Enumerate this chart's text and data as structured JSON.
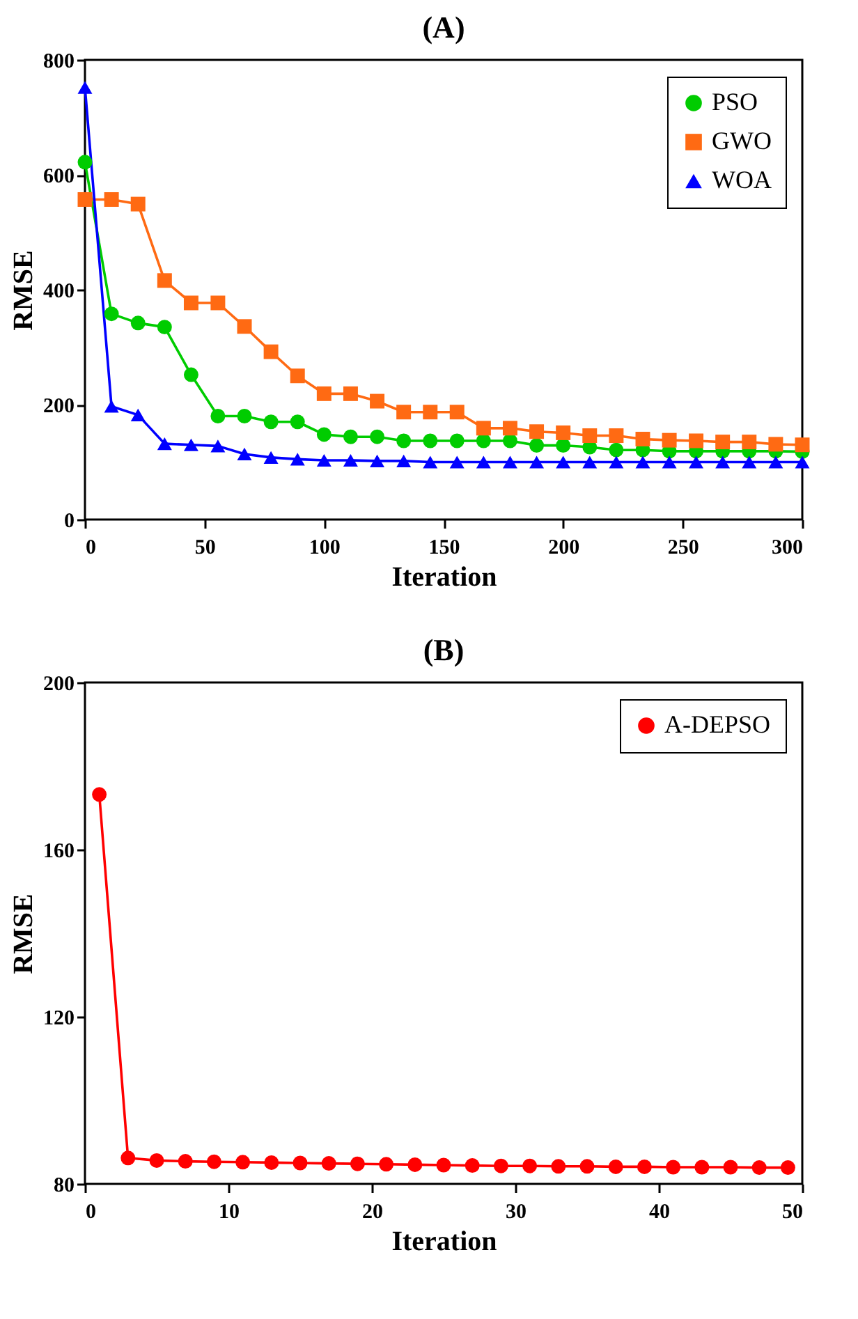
{
  "chart_data": [
    {
      "type": "line",
      "title": "(A)",
      "xlabel": "Iteration",
      "ylabel": "RMSE",
      "xlim": [
        0,
        300
      ],
      "xticks": [
        0,
        50,
        100,
        150,
        200,
        250,
        300
      ],
      "ylim": [
        0,
        800
      ],
      "yticks": [
        0,
        200,
        400,
        600,
        800
      ],
      "grid": false,
      "legend": "top right",
      "x": [
        0,
        11.1,
        22.2,
        33.3,
        44.4,
        55.6,
        66.7,
        77.8,
        88.9,
        100,
        111.1,
        122.2,
        133.3,
        144.4,
        155.6,
        166.7,
        177.8,
        188.9,
        200,
        211.1,
        222.2,
        233.3,
        244.4,
        255.6,
        266.7,
        277.8,
        288.9,
        300
      ],
      "series": [
        {
          "name": "PSO",
          "color": "#00cc00",
          "marker": "circle",
          "values": [
            622,
            358,
            342,
            335,
            252,
            180,
            180,
            170,
            170,
            148,
            144,
            144,
            137,
            137,
            137,
            137,
            137,
            129,
            129,
            126,
            121,
            121,
            119,
            119,
            119,
            119,
            119,
            118
          ]
        },
        {
          "name": "GWO",
          "color": "#ff6a13",
          "marker": "square",
          "values": [
            557,
            557,
            549,
            416,
            377,
            377,
            336,
            292,
            250,
            219,
            219,
            206,
            187,
            187,
            187,
            159,
            159,
            153,
            151,
            146,
            146,
            140,
            138,
            137,
            135,
            135,
            131,
            130
          ]
        },
        {
          "name": "WOA",
          "color": "#0000ff",
          "marker": "triangle",
          "values": [
            752,
            197,
            182,
            132,
            130,
            128,
            114,
            108,
            105,
            103,
            103,
            102,
            102,
            100,
            100,
            100,
            100,
            100,
            100,
            100,
            100,
            100,
            100,
            100,
            100,
            100,
            100,
            100
          ]
        }
      ]
    },
    {
      "type": "line",
      "title": "(B)",
      "xlabel": "Iteration",
      "ylabel": "RMSE",
      "xlim": [
        0,
        50
      ],
      "xticks": [
        0,
        10,
        20,
        30,
        40,
        50
      ],
      "ylim": [
        80,
        200
      ],
      "yticks": [
        80,
        120,
        160,
        200
      ],
      "grid": false,
      "legend": "top right",
      "x": [
        1,
        3,
        5,
        7,
        9,
        11,
        13,
        15,
        17,
        19,
        21,
        23,
        25,
        27,
        29,
        31,
        33,
        35,
        37,
        39,
        41,
        43,
        45,
        47,
        49
      ],
      "series": [
        {
          "name": "A-DEPSO",
          "color": "#ff0000",
          "marker": "circle",
          "values": [
            173.2,
            86.2,
            85.6,
            85.4,
            85.3,
            85.2,
            85.1,
            85.0,
            84.9,
            84.8,
            84.7,
            84.6,
            84.5,
            84.4,
            84.3,
            84.3,
            84.2,
            84.2,
            84.1,
            84.1,
            84.0,
            84.0,
            84.0,
            83.9,
            83.9
          ]
        }
      ]
    }
  ]
}
